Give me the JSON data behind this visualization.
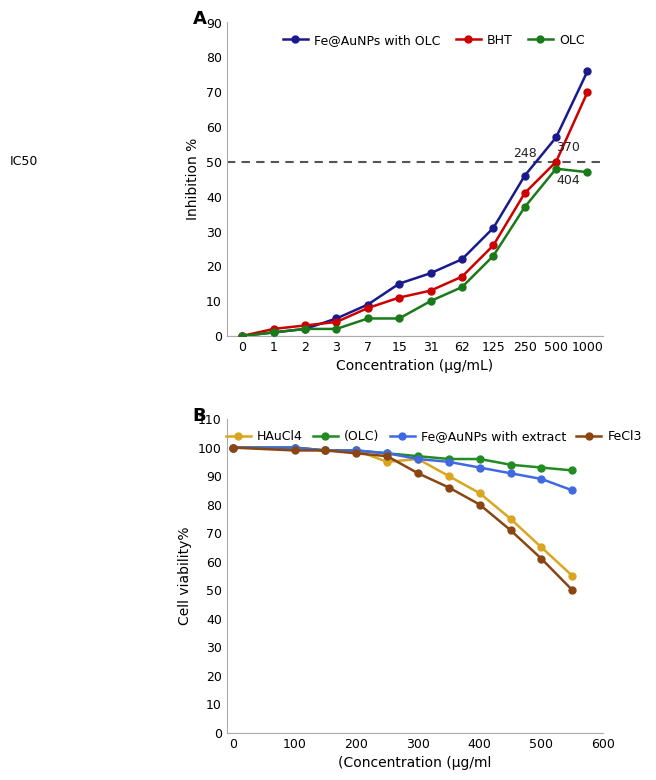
{
  "panel_A": {
    "x_ticks": [
      0,
      1,
      2,
      3,
      7,
      15,
      31,
      62,
      125,
      250,
      500,
      1000
    ],
    "x_positions": [
      0,
      1,
      2,
      3,
      4,
      5,
      6,
      7,
      8,
      9,
      10,
      11
    ],
    "fe_aunps": [
      0,
      1,
      2,
      5,
      9,
      15,
      18,
      22,
      31,
      46,
      57,
      76
    ],
    "bht": [
      0,
      2,
      3,
      4,
      8,
      11,
      13,
      17,
      26,
      41,
      50,
      70
    ],
    "olc": [
      0,
      1,
      2,
      2,
      5,
      5,
      10,
      14,
      23,
      37,
      48,
      47
    ],
    "fe_color": "#1a1a8c",
    "bht_color": "#cc0000",
    "olc_color": "#1a7a1a",
    "ylim": [
      0,
      90
    ],
    "yticks": [
      0,
      10,
      20,
      30,
      40,
      50,
      60,
      70,
      80,
      90
    ],
    "ylabel": "Inhibition %",
    "xlabel": "Concentration (μg/mL)",
    "ic50_y": 50,
    "ic50_label": "IC50",
    "ann_248": {
      "xi": 9,
      "y": 51.5,
      "label": "248"
    },
    "ann_370": {
      "xi": 10,
      "y": 53,
      "label": "370"
    },
    "ann_404": {
      "xi": 10,
      "y": 43.5,
      "label": "404"
    },
    "legend_labels": [
      "Fe@AuNPs with OLC",
      "BHT",
      "OLC"
    ],
    "panel_label": "A"
  },
  "panel_B": {
    "x_data": [
      0,
      100,
      150,
      200,
      250,
      300,
      350,
      400,
      450,
      500,
      550
    ],
    "hauCl4": [
      100,
      100,
      99,
      99,
      95,
      96,
      90,
      84,
      75,
      65,
      55
    ],
    "olc": [
      100,
      100,
      99,
      99,
      98,
      97,
      96,
      96,
      94,
      93,
      92
    ],
    "fe_aunps_extract": [
      100,
      100,
      99,
      99,
      98,
      96,
      95,
      93,
      91,
      89,
      85
    ],
    "fecl3": [
      100,
      99,
      99,
      98,
      97,
      91,
      86,
      80,
      71,
      61,
      50
    ],
    "hauCl4_color": "#DAA520",
    "olc_color": "#228B22",
    "fe_aunps_color": "#4169E1",
    "fecl3_color": "#8B4513",
    "ylim": [
      0,
      110
    ],
    "yticks": [
      0,
      10,
      20,
      30,
      40,
      50,
      60,
      70,
      80,
      90,
      100,
      110
    ],
    "ylabel": "Cell viability%",
    "xlabel": "(Concentration (μg/ml",
    "legend_labels": [
      "HAuCl4",
      "(OLC)",
      "Fe@AuNPs with extract",
      "FeCl3"
    ],
    "panel_label": "B"
  }
}
